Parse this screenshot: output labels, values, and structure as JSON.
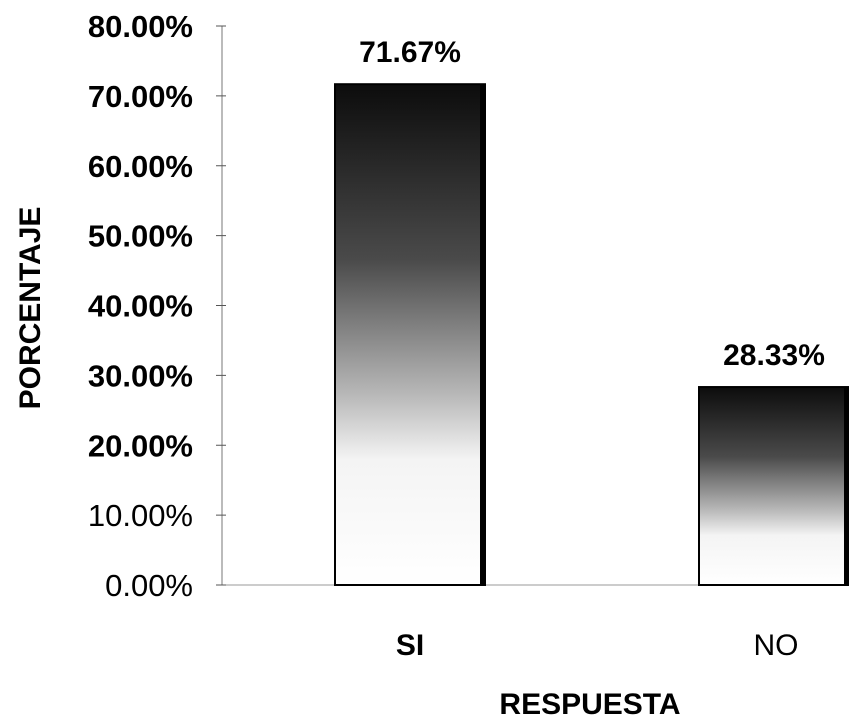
{
  "chart_data": {
    "type": "bar",
    "title": "",
    "xlabel": "RESPUESTA",
    "ylabel": "PORCENTAJE",
    "ylim": [
      0,
      80
    ],
    "yticks": [
      0,
      10,
      20,
      30,
      40,
      50,
      60,
      70,
      80
    ],
    "ytick_labels": [
      "0.00%",
      "10.00%",
      "20.00%",
      "30.00%",
      "40.00%",
      "50.00%",
      "60.00%",
      "70.00%",
      "80.00%"
    ],
    "categories": [
      "SI",
      "NO"
    ],
    "values": [
      71.67,
      28.33
    ],
    "value_labels": [
      "71.67%",
      "28.33%"
    ],
    "grid": false,
    "legend": "none"
  }
}
